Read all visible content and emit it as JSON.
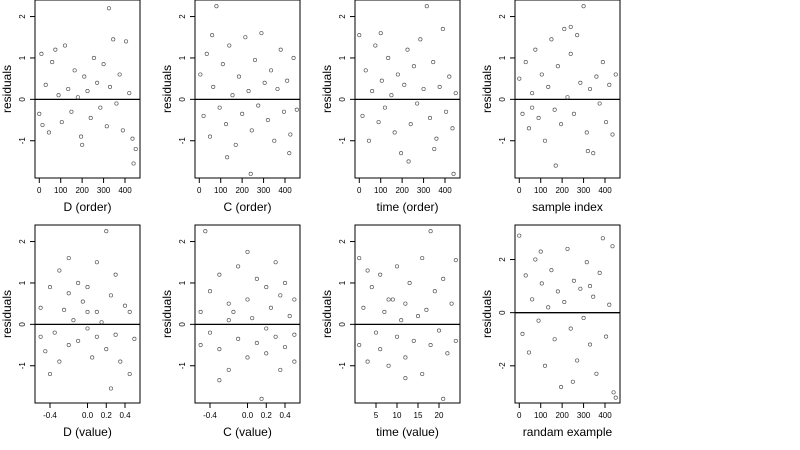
{
  "chart_data": [
    {
      "type": "scatter",
      "xlabel": "D (order)",
      "ylabel": "residuals",
      "xlim": [
        -20,
        470
      ],
      "ylim": [
        -1.9,
        2.4
      ],
      "xticks": [
        0,
        100,
        200,
        300,
        400
      ],
      "xtick_labels": [
        "0",
        "100",
        "200",
        "300",
        "400"
      ],
      "yticks": [
        -1,
        0,
        1,
        2
      ],
      "ytick_labels": [
        "-1",
        "0",
        "1",
        "2"
      ],
      "hline": 0,
      "x_kind": "index",
      "points": [
        [
          0,
          -0.35
        ],
        [
          15,
          -0.62
        ],
        [
          30,
          0.35
        ],
        [
          45,
          -0.8
        ],
        [
          60,
          0.9
        ],
        [
          75,
          1.2
        ],
        [
          90,
          0.1
        ],
        [
          105,
          -0.55
        ],
        [
          120,
          1.3
        ],
        [
          135,
          0.25
        ],
        [
          150,
          -0.3
        ],
        [
          165,
          0.7
        ],
        [
          180,
          0.05
        ],
        [
          195,
          -0.9
        ],
        [
          210,
          0.55
        ],
        [
          225,
          0.2
        ],
        [
          240,
          -0.45
        ],
        [
          255,
          1.0
        ],
        [
          270,
          0.4
        ],
        [
          285,
          -0.2
        ],
        [
          300,
          0.85
        ],
        [
          315,
          -0.65
        ],
        [
          330,
          0.3
        ],
        [
          345,
          1.45
        ],
        [
          360,
          -0.1
        ],
        [
          375,
          0.6
        ],
        [
          390,
          -0.75
        ],
        [
          405,
          1.4
        ],
        [
          420,
          0.15
        ],
        [
          435,
          -0.95
        ],
        [
          450,
          -1.2
        ],
        [
          325,
          2.2
        ],
        [
          10,
          1.1
        ],
        [
          200,
          -1.1
        ],
        [
          440,
          -1.55
        ]
      ]
    },
    {
      "type": "scatter",
      "xlabel": "C (order)",
      "ylabel": "residuals",
      "xlim": [
        -20,
        470
      ],
      "ylim": [
        -1.9,
        2.4
      ],
      "xticks": [
        0,
        100,
        200,
        300,
        400
      ],
      "xtick_labels": [
        "0",
        "100",
        "200",
        "300",
        "400"
      ],
      "yticks": [
        -1,
        0,
        1,
        2
      ],
      "ytick_labels": [
        "-1",
        "0",
        "1",
        "2"
      ],
      "hline": 0,
      "x_kind": "index",
      "points": [
        [
          5,
          0.6
        ],
        [
          20,
          -0.4
        ],
        [
          35,
          1.1
        ],
        [
          50,
          -0.9
        ],
        [
          65,
          0.3
        ],
        [
          80,
          2.25
        ],
        [
          95,
          -0.2
        ],
        [
          110,
          0.85
        ],
        [
          125,
          -0.6
        ],
        [
          140,
          1.3
        ],
        [
          155,
          0.1
        ],
        [
          170,
          -1.1
        ],
        [
          185,
          0.55
        ],
        [
          200,
          -0.35
        ],
        [
          215,
          1.5
        ],
        [
          230,
          0.2
        ],
        [
          245,
          -0.75
        ],
        [
          260,
          0.95
        ],
        [
          275,
          -0.15
        ],
        [
          290,
          1.6
        ],
        [
          305,
          0.4
        ],
        [
          320,
          -0.5
        ],
        [
          335,
          0.7
        ],
        [
          350,
          -1.0
        ],
        [
          365,
          0.25
        ],
        [
          380,
          1.2
        ],
        [
          395,
          -0.3
        ],
        [
          410,
          0.45
        ],
        [
          425,
          -0.85
        ],
        [
          440,
          1.0
        ],
        [
          455,
          -0.25
        ],
        [
          240,
          -1.8
        ],
        [
          130,
          -1.4
        ],
        [
          60,
          1.55
        ],
        [
          420,
          -1.3
        ]
      ]
    },
    {
      "type": "scatter",
      "xlabel": "time (order)",
      "ylabel": "residuals",
      "xlim": [
        -20,
        470
      ],
      "ylim": [
        -1.9,
        2.4
      ],
      "xticks": [
        0,
        100,
        200,
        300,
        400
      ],
      "xtick_labels": [
        "0",
        "100",
        "200",
        "300",
        "400"
      ],
      "yticks": [
        -1,
        0,
        1,
        2
      ],
      "ytick_labels": [
        "-1",
        "0",
        "1",
        "2"
      ],
      "hline": 0,
      "x_kind": "index",
      "points": [
        [
          0,
          1.55
        ],
        [
          15,
          -0.4
        ],
        [
          30,
          0.7
        ],
        [
          45,
          -1.0
        ],
        [
          60,
          0.2
        ],
        [
          75,
          1.3
        ],
        [
          90,
          -0.55
        ],
        [
          105,
          0.45
        ],
        [
          120,
          -0.2
        ],
        [
          135,
          1.0
        ],
        [
          150,
          0.1
        ],
        [
          165,
          -0.8
        ],
        [
          180,
          0.6
        ],
        [
          195,
          -1.3
        ],
        [
          210,
          0.35
        ],
        [
          225,
          1.2
        ],
        [
          240,
          -0.6
        ],
        [
          255,
          0.8
        ],
        [
          270,
          -0.1
        ],
        [
          285,
          1.45
        ],
        [
          300,
          0.25
        ],
        [
          315,
          2.25
        ],
        [
          330,
          -0.45
        ],
        [
          345,
          0.9
        ],
        [
          360,
          -0.95
        ],
        [
          375,
          0.3
        ],
        [
          390,
          1.7
        ],
        [
          405,
          -0.3
        ],
        [
          420,
          0.55
        ],
        [
          435,
          -0.7
        ],
        [
          450,
          0.15
        ],
        [
          440,
          -1.8
        ],
        [
          230,
          -1.5
        ],
        [
          100,
          1.6
        ],
        [
          350,
          -1.2
        ]
      ]
    },
    {
      "type": "scatter",
      "xlabel": "sample index",
      "ylabel": "residuals",
      "xlim": [
        -20,
        470
      ],
      "ylim": [
        -1.9,
        2.4
      ],
      "xticks": [
        0,
        100,
        200,
        300,
        400
      ],
      "xtick_labels": [
        "0",
        "100",
        "200",
        "300",
        "400"
      ],
      "yticks": [
        -1,
        0,
        1,
        2
      ],
      "ytick_labels": [
        "-1",
        "0",
        "1",
        "2"
      ],
      "hline": 0,
      "x_kind": "index",
      "points": [
        [
          0,
          0.5
        ],
        [
          15,
          -0.35
        ],
        [
          30,
          0.9
        ],
        [
          45,
          -0.7
        ],
        [
          60,
          0.15
        ],
        [
          75,
          1.2
        ],
        [
          90,
          -0.45
        ],
        [
          105,
          0.6
        ],
        [
          120,
          -1.0
        ],
        [
          135,
          0.3
        ],
        [
          150,
          1.45
        ],
        [
          165,
          -0.25
        ],
        [
          180,
          0.8
        ],
        [
          195,
          -0.6
        ],
        [
          210,
          1.7
        ],
        [
          225,
          0.05
        ],
        [
          240,
          1.1
        ],
        [
          255,
          -0.35
        ],
        [
          270,
          1.55
        ],
        [
          285,
          0.4
        ],
        [
          300,
          2.25
        ],
        [
          315,
          -0.8
        ],
        [
          330,
          0.25
        ],
        [
          345,
          -1.3
        ],
        [
          360,
          0.55
        ],
        [
          375,
          -0.1
        ],
        [
          390,
          0.9
        ],
        [
          405,
          -0.55
        ],
        [
          420,
          0.35
        ],
        [
          435,
          -0.85
        ],
        [
          450,
          0.6
        ],
        [
          170,
          -1.6
        ],
        [
          320,
          -1.25
        ],
        [
          240,
          1.75
        ],
        [
          60,
          -0.2
        ]
      ]
    },
    {
      "type": "scatter",
      "xlabel": "D (value)",
      "ylabel": "residuals",
      "xlim": [
        -0.56,
        0.56
      ],
      "ylim": [
        -1.9,
        2.4
      ],
      "xticks": [
        -0.4,
        0,
        0.2,
        0.4
      ],
      "xtick_labels": [
        "-0.4",
        "0.0",
        "0.2",
        "0.4"
      ],
      "yticks": [
        -1,
        0,
        1,
        2
      ],
      "ytick_labels": [
        "-1",
        "0",
        "1",
        "2"
      ],
      "hline": 0,
      "x_kind": "value",
      "points": [
        [
          -0.5,
          -0.3
        ],
        [
          -0.5,
          0.4
        ],
        [
          -0.45,
          -0.65
        ],
        [
          -0.4,
          0.9
        ],
        [
          -0.35,
          -0.2
        ],
        [
          -0.3,
          1.3
        ],
        [
          -0.3,
          -0.9
        ],
        [
          -0.25,
          0.35
        ],
        [
          -0.2,
          -0.5
        ],
        [
          -0.2,
          0.75
        ],
        [
          -0.15,
          0.1
        ],
        [
          -0.1,
          1.0
        ],
        [
          -0.1,
          -0.4
        ],
        [
          -0.05,
          0.55
        ],
        [
          0.0,
          -0.1
        ],
        [
          0.0,
          0.9
        ],
        [
          0.05,
          -0.8
        ],
        [
          0.1,
          0.3
        ],
        [
          0.1,
          -0.3
        ],
        [
          0.1,
          1.5
        ],
        [
          0.15,
          0.05
        ],
        [
          0.2,
          2.25
        ],
        [
          0.2,
          -0.6
        ],
        [
          0.25,
          0.7
        ],
        [
          0.3,
          -0.25
        ],
        [
          0.3,
          1.2
        ],
        [
          0.35,
          -0.9
        ],
        [
          0.4,
          0.45
        ],
        [
          0.45,
          -1.2
        ],
        [
          0.5,
          -0.35
        ],
        [
          -0.4,
          -1.2
        ],
        [
          0.25,
          -1.55
        ],
        [
          -0.2,
          1.6
        ],
        [
          0.45,
          0.3
        ],
        [
          0.0,
          0.3
        ]
      ]
    },
    {
      "type": "scatter",
      "xlabel": "C (value)",
      "ylabel": "residuals",
      "xlim": [
        -0.56,
        0.56
      ],
      "ylim": [
        -1.9,
        2.4
      ],
      "xticks": [
        -0.4,
        0,
        0.2,
        0.4
      ],
      "xtick_labels": [
        "-0.4",
        "0.0",
        "0.2",
        "0.4"
      ],
      "yticks": [
        -1,
        0,
        1,
        2
      ],
      "ytick_labels": [
        "-1",
        "0",
        "1",
        "2"
      ],
      "hline": 0,
      "x_kind": "value",
      "points": [
        [
          -0.5,
          0.3
        ],
        [
          -0.5,
          -0.5
        ],
        [
          -0.45,
          2.25
        ],
        [
          -0.4,
          0.8
        ],
        [
          -0.4,
          -0.2
        ],
        [
          -0.3,
          1.2
        ],
        [
          -0.3,
          -0.6
        ],
        [
          -0.2,
          0.1
        ],
        [
          -0.2,
          -1.1
        ],
        [
          -0.2,
          0.5
        ],
        [
          -0.1,
          1.4
        ],
        [
          -0.1,
          -0.35
        ],
        [
          0.0,
          0.6
        ],
        [
          0.0,
          -0.8
        ],
        [
          0.05,
          0.15
        ],
        [
          0.1,
          1.1
        ],
        [
          0.1,
          -0.45
        ],
        [
          0.2,
          -0.1
        ],
        [
          0.2,
          0.9
        ],
        [
          0.2,
          -0.7
        ],
        [
          0.25,
          0.4
        ],
        [
          0.3,
          1.5
        ],
        [
          0.3,
          -0.3
        ],
        [
          0.35,
          0.7
        ],
        [
          0.4,
          -0.55
        ],
        [
          0.4,
          1.0
        ],
        [
          0.45,
          0.2
        ],
        [
          0.5,
          -0.25
        ],
        [
          0.5,
          0.6
        ],
        [
          0.5,
          -0.9
        ],
        [
          0.15,
          -1.8
        ],
        [
          -0.3,
          -1.35
        ],
        [
          0.0,
          1.75
        ],
        [
          -0.15,
          0.3
        ],
        [
          0.35,
          -1.1
        ]
      ]
    },
    {
      "type": "scatter",
      "xlabel": "time (value)",
      "ylabel": "residuals",
      "xlim": [
        0,
        25
      ],
      "ylim": [
        -1.9,
        2.4
      ],
      "xticks": [
        5,
        10,
        15,
        20
      ],
      "xtick_labels": [
        "5",
        "10",
        "15",
        "20"
      ],
      "yticks": [
        -1,
        0,
        1,
        2
      ],
      "ytick_labels": [
        "-1",
        "0",
        "1",
        "2"
      ],
      "hline": 0,
      "x_kind": "value",
      "points": [
        [
          1,
          1.6
        ],
        [
          1,
          -0.5
        ],
        [
          2,
          0.4
        ],
        [
          3,
          -0.9
        ],
        [
          4,
          0.9
        ],
        [
          5,
          -0.2
        ],
        [
          6,
          1.2
        ],
        [
          6,
          -0.6
        ],
        [
          7,
          0.3
        ],
        [
          8,
          -1.0
        ],
        [
          9,
          0.6
        ],
        [
          10,
          1.4
        ],
        [
          10,
          -0.3
        ],
        [
          11,
          0.1
        ],
        [
          12,
          -0.8
        ],
        [
          12,
          0.5
        ],
        [
          13,
          1.0
        ],
        [
          14,
          -0.4
        ],
        [
          15,
          0.2
        ],
        [
          16,
          1.6
        ],
        [
          16,
          -1.2
        ],
        [
          17,
          0.35
        ],
        [
          18,
          2.25
        ],
        [
          18,
          -0.5
        ],
        [
          19,
          0.8
        ],
        [
          20,
          -0.15
        ],
        [
          21,
          1.1
        ],
        [
          22,
          -0.7
        ],
        [
          23,
          0.5
        ],
        [
          24,
          -0.4
        ],
        [
          24,
          1.55
        ],
        [
          21,
          -1.8
        ],
        [
          12,
          -1.3
        ],
        [
          3,
          1.3
        ],
        [
          8,
          0.6
        ]
      ]
    },
    {
      "type": "scatter",
      "xlabel": "randam example",
      "ylabel": "residuals",
      "xlim": [
        -20,
        470
      ],
      "ylim": [
        -3.4,
        3.3
      ],
      "xticks": [
        0,
        100,
        200,
        300,
        400
      ],
      "xtick_labels": [
        "0",
        "100",
        "200",
        "300",
        "400"
      ],
      "yticks": [
        -2,
        0,
        2
      ],
      "ytick_labels": [
        "-2",
        "0",
        "2"
      ],
      "hline": 0,
      "x_kind": "index",
      "points": [
        [
          0,
          2.9
        ],
        [
          15,
          -0.8
        ],
        [
          30,
          1.4
        ],
        [
          45,
          -1.5
        ],
        [
          60,
          0.5
        ],
        [
          75,
          2.0
        ],
        [
          90,
          -0.3
        ],
        [
          105,
          1.1
        ],
        [
          120,
          -2.0
        ],
        [
          135,
          0.2
        ],
        [
          150,
          1.6
        ],
        [
          165,
          -1.0
        ],
        [
          180,
          0.8
        ],
        [
          195,
          -2.8
        ],
        [
          210,
          0.4
        ],
        [
          225,
          2.4
        ],
        [
          240,
          -0.6
        ],
        [
          255,
          1.2
        ],
        [
          270,
          -1.8
        ],
        [
          285,
          0.9
        ],
        [
          300,
          -0.2
        ],
        [
          315,
          1.9
        ],
        [
          330,
          -1.2
        ],
        [
          345,
          0.6
        ],
        [
          360,
          -2.3
        ],
        [
          375,
          1.5
        ],
        [
          390,
          2.8
        ],
        [
          405,
          -0.9
        ],
        [
          420,
          0.3
        ],
        [
          435,
          2.5
        ],
        [
          440,
          -3.0
        ],
        [
          450,
          -3.2
        ],
        [
          250,
          -2.6
        ],
        [
          100,
          2.3
        ],
        [
          330,
          1.0
        ]
      ]
    }
  ]
}
